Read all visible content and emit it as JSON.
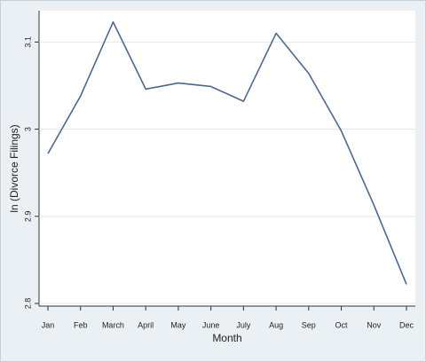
{
  "chart_data": {
    "type": "line",
    "categories": [
      "Jan",
      "Feb",
      "March",
      "April",
      "May",
      "June",
      "July",
      "Aug",
      "Sep",
      "Oct",
      "Nov",
      "Dec"
    ],
    "values": [
      2.972,
      3.038,
      3.123,
      3.046,
      3.053,
      3.049,
      3.032,
      3.11,
      3.064,
      2.998,
      2.913,
      2.822
    ],
    "color": "#4a6890",
    "xlabel": "Month",
    "ylabel": "ln (Divorce Filings)",
    "ylim": [
      2.797,
      3.136
    ],
    "yticks": [
      2.8,
      2.9,
      3,
      3.1
    ],
    "grid": true
  }
}
